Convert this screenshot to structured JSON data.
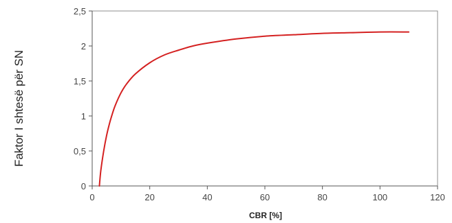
{
  "chart_data": {
    "type": "line",
    "xlabel": "CBR [%]",
    "ylabel": "Faktor I shtesë për SN",
    "xlim": [
      0,
      120
    ],
    "ylim": [
      0,
      2.5
    ],
    "x_ticks": [
      0,
      20,
      40,
      60,
      80,
      100,
      120
    ],
    "x_tick_labels": [
      "0",
      "20",
      "40",
      "60",
      "80",
      "100",
      "120"
    ],
    "y_ticks": [
      0,
      0.5,
      1,
      1.5,
      2,
      2.5
    ],
    "y_tick_labels": [
      "0",
      "0,5",
      "1",
      "1,5",
      "2",
      "2,5"
    ],
    "grid": false,
    "legend": "none",
    "series": [
      {
        "color": "#d42020",
        "x": [
          2.5,
          3,
          4,
          5,
          6,
          7,
          8,
          10,
          12,
          15,
          20,
          25,
          30,
          35,
          40,
          50,
          60,
          70,
          80,
          90,
          100,
          110
        ],
        "y": [
          0,
          0.22,
          0.5,
          0.72,
          0.89,
          1.03,
          1.15,
          1.33,
          1.46,
          1.6,
          1.76,
          1.87,
          1.94,
          2.0,
          2.04,
          2.1,
          2.14,
          2.16,
          2.18,
          2.19,
          2.2,
          2.2
        ]
      }
    ]
  }
}
